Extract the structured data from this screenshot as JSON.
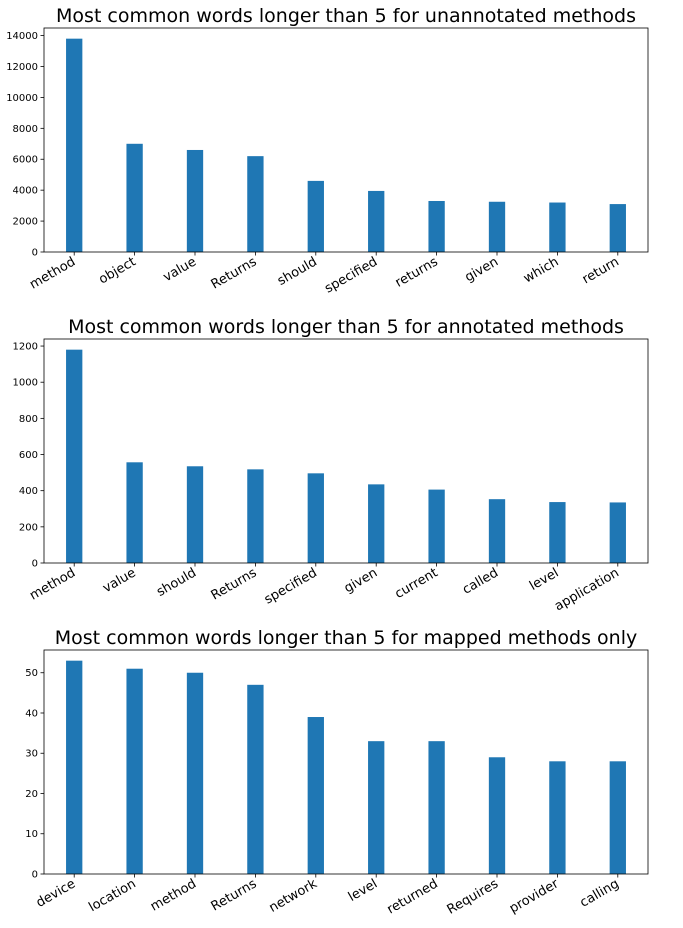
{
  "chart_data": [
    {
      "type": "bar",
      "title": "Most common words longer than 5 for unannotated methods",
      "categories": [
        "method",
        "object",
        "value",
        "Returns",
        "should",
        "specified",
        "returns",
        "given",
        "which",
        "return"
      ],
      "values": [
        13800,
        7000,
        6600,
        6200,
        4600,
        3950,
        3300,
        3250,
        3200,
        3100
      ],
      "yticks": [
        0,
        2000,
        4000,
        6000,
        8000,
        10000,
        12000,
        14000
      ],
      "ylim": [
        0,
        14490
      ],
      "color": "#1f77b4",
      "grid": false,
      "xlabel": "",
      "ylabel": ""
    },
    {
      "type": "bar",
      "title": "Most common words longer than 5 for annotated methods",
      "categories": [
        "method",
        "value",
        "should",
        "Returns",
        "specified",
        "given",
        "current",
        "called",
        "level",
        "application"
      ],
      "values": [
        1180,
        557,
        535,
        518,
        496,
        435,
        406,
        353,
        337,
        335
      ],
      "yticks": [
        0,
        200,
        400,
        600,
        800,
        1000,
        1200
      ],
      "ylim": [
        0,
        1239
      ],
      "color": "#1f77b4",
      "grid": false,
      "xlabel": "",
      "ylabel": ""
    },
    {
      "type": "bar",
      "title": "Most common words longer than 5 for mapped methods only",
      "categories": [
        "device",
        "location",
        "method",
        "Returns",
        "network",
        "level",
        "returned",
        "Requires",
        "provider",
        "calling"
      ],
      "values": [
        53,
        51,
        50,
        47,
        39,
        33,
        33,
        29,
        28,
        28
      ],
      "yticks": [
        0,
        10,
        20,
        30,
        40,
        50
      ],
      "ylim": [
        0,
        55.65
      ],
      "color": "#1f77b4",
      "grid": false,
      "xlabel": "",
      "ylabel": ""
    }
  ]
}
